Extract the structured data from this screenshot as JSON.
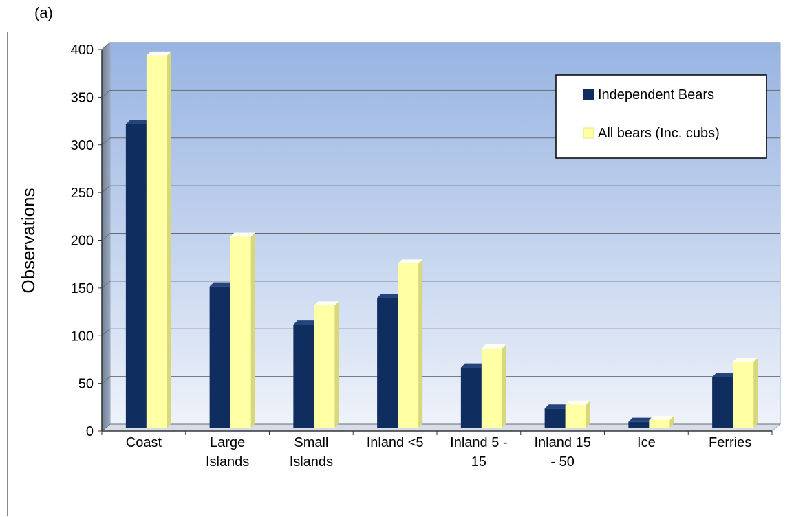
{
  "panel_label": "(a)",
  "chart_data": {
    "type": "bar",
    "title": "",
    "xlabel": "",
    "ylabel": "Observations",
    "ylim": [
      0,
      400
    ],
    "yticks": [
      0,
      50,
      100,
      150,
      200,
      250,
      300,
      350,
      400
    ],
    "categories": [
      [
        "Coast"
      ],
      [
        "Large",
        "Islands"
      ],
      [
        "Small",
        "Islands"
      ],
      [
        "Inland <5"
      ],
      [
        "Inland 5 -",
        "15"
      ],
      [
        "Inland 15",
        "- 50"
      ],
      [
        "Ice"
      ],
      [
        "Ferries"
      ]
    ],
    "series": [
      {
        "name": "Independent Bears",
        "color": "#0f2d5e",
        "values": [
          318,
          148,
          108,
          136,
          63,
          20,
          6,
          53
        ]
      },
      {
        "name": "All bears (Inc. cubs)",
        "color": "#ffffa3",
        "values": [
          390,
          200,
          128,
          172,
          83,
          24,
          8,
          69
        ]
      }
    ],
    "grid": true,
    "legend": "top-right"
  }
}
